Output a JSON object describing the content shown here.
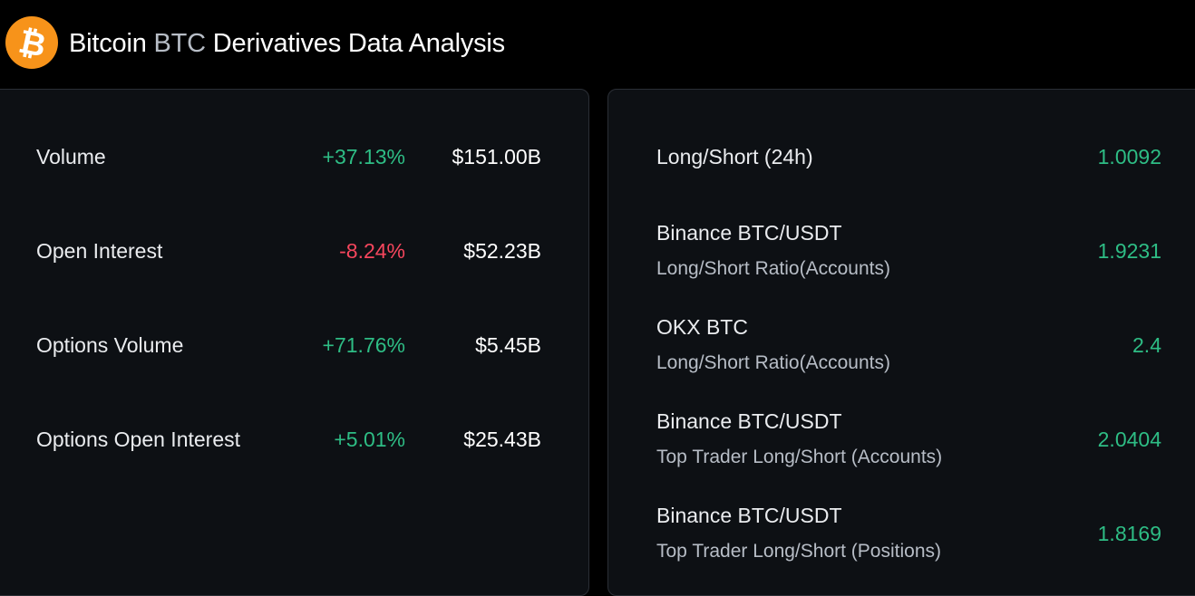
{
  "header": {
    "logo_icon": "bitcoin-icon",
    "title_prefix": "Bitcoin",
    "title_symbol": "BTC",
    "title_suffix": "Derivatives Data Analysis"
  },
  "colors": {
    "positive": "#2ebd85",
    "negative": "#f6465d",
    "brand": "#f7931a"
  },
  "stats": [
    {
      "label": "Volume",
      "change": "+37.13%",
      "direction": "up",
      "value": "$151.00B"
    },
    {
      "label": "Open Interest",
      "change": "-8.24%",
      "direction": "down",
      "value": "$52.23B"
    },
    {
      "label": "Options Volume",
      "change": "+71.76%",
      "direction": "up",
      "value": "$5.45B"
    },
    {
      "label": "Options Open Interest",
      "change": "+5.01%",
      "direction": "up",
      "value": "$25.43B"
    }
  ],
  "ratios": [
    {
      "name": "Long/Short (24h)",
      "sub": "",
      "value": "1.0092"
    },
    {
      "name": "Binance BTC/USDT",
      "sub": "Long/Short Ratio(Accounts)",
      "value": "1.9231"
    },
    {
      "name": "OKX BTC",
      "sub": "Long/Short Ratio(Accounts)",
      "value": "2.4"
    },
    {
      "name": "Binance BTC/USDT",
      "sub": "Top Trader Long/Short (Accounts)",
      "value": "2.0404"
    },
    {
      "name": "Binance BTC/USDT",
      "sub": "Top Trader Long/Short (Positions)",
      "value": "1.8169"
    }
  ]
}
